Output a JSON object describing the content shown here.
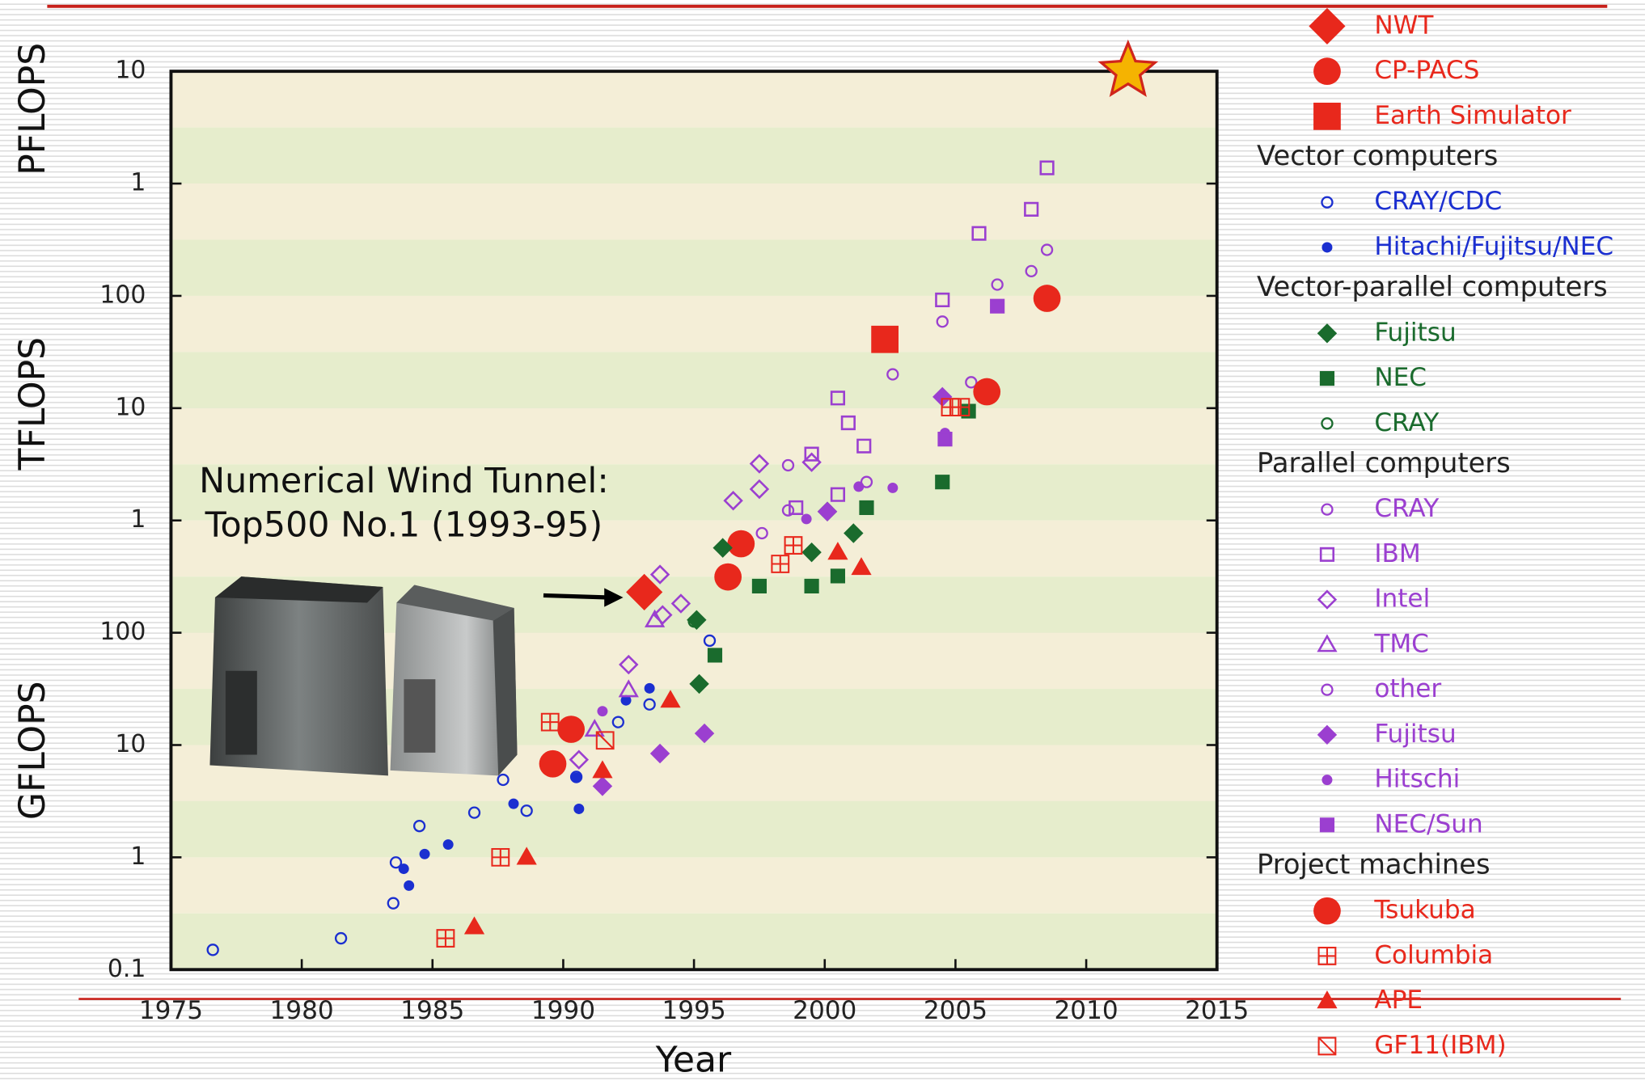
{
  "chart_data": {
    "type": "scatter",
    "unit_labels": [
      "GFLOPS",
      "TFLOPS",
      "PFLOPS"
    ],
    "xlabel": "Year",
    "annotation": [
      "Numerical Wind Tunnel:",
      "Top500 No.1 (1993-95)"
    ],
    "log_y": true,
    "xlim": [
      1975,
      2015
    ],
    "ylim": [
      0.1,
      10000000
    ],
    "xticks": [
      1975,
      1980,
      1985,
      1990,
      1995,
      2000,
      2005,
      2010,
      2015
    ],
    "yticks": [
      0.1,
      1,
      10,
      100,
      {
        "value": 1000,
        "label": "1"
      },
      {
        "value": 10000,
        "label": "10"
      },
      {
        "value": 100000,
        "label": "100"
      },
      {
        "value": 1000000,
        "label": "1"
      },
      {
        "value": 10000000,
        "label": "10"
      }
    ],
    "series": [
      {
        "name": "NWT",
        "color": "#e8281c",
        "marker": "diamond-big",
        "x": [
          1993.1
        ],
        "values": [
          230
        ]
      },
      {
        "name": "CP-PACS",
        "color": "#e8281c",
        "marker": "circle-big",
        "x": [
          1996.8
        ],
        "values": [
          620
        ]
      },
      {
        "name": "Earth Simulator",
        "color": "#e8281c",
        "marker": "square-big",
        "x": [
          2002.3
        ],
        "values": [
          41000
        ]
      },
      {
        "name": "CRAY/CDC",
        "group": "Vector computers",
        "color": "#1b2fd0",
        "marker": "circle-open",
        "x": [
          1976.6,
          1981.5,
          1983.5,
          1983.6,
          1984.5,
          1986.6,
          1987.7,
          1988.6,
          1990.5,
          1992.1,
          1993.3,
          1995.6
        ],
        "values": [
          0.15,
          0.19,
          0.39,
          0.9,
          1.9,
          2.5,
          4.9,
          2.6,
          5.2,
          16,
          23,
          85
        ]
      },
      {
        "name": "Hitachi/Fujitsu/NEC",
        "group": "Vector computers",
        "color": "#1b2fd0",
        "marker": "dot",
        "x": [
          1983.9,
          1984.1,
          1984.7,
          1985.6,
          1988.1,
          1990.6,
          1990.5,
          1992.4,
          1993.3
        ],
        "values": [
          0.79,
          0.56,
          1.07,
          1.3,
          3.0,
          2.7,
          5.1,
          25,
          32
        ]
      },
      {
        "name": "Fujitsu",
        "group": "Vector-parallel computers",
        "color": "#1a6b2d",
        "marker": "diamond",
        "x": [
          1995.1,
          1995.2,
          1996.1,
          1999.5,
          2000.1,
          2001.1
        ],
        "values": [
          130,
          35,
          570,
          520,
          1200,
          770
        ]
      },
      {
        "name": "NEC",
        "group": "Vector-parallel computers",
        "color": "#1a6b2d",
        "marker": "square",
        "x": [
          1995.8,
          1997.5,
          1999.5,
          2000.5,
          2001.6,
          2004.5,
          2005.5
        ],
        "values": [
          63,
          260,
          260,
          320,
          1300,
          2200,
          9400
        ]
      },
      {
        "name": "CRAY",
        "group": "Vector-parallel computers",
        "color": "#1a6b2d",
        "marker": "circle-open",
        "x": [
          1995.0
        ],
        "values": [
          126
        ]
      },
      {
        "name": "CRAY",
        "group": "Parallel computers",
        "color": "#9b3fd0",
        "marker": "circle-open",
        "x": [
          2002.6,
          2004.5,
          2005.6,
          2006.6,
          2007.9,
          2008.5
        ],
        "values": [
          20000,
          59000,
          17000,
          126000,
          166000,
          257000
        ]
      },
      {
        "name": "IBM",
        "group": "Parallel computers",
        "color": "#9b3fd0",
        "marker": "square-open",
        "x": [
          1998.9,
          2000.5,
          2000.5,
          2000.9,
          2001.5,
          1999.5,
          2004.5,
          2005.9,
          2007.9,
          2008.5
        ],
        "values": [
          1300,
          1700,
          12300,
          7400,
          4600,
          3900,
          92000,
          360000,
          590000,
          1380000
        ]
      },
      {
        "name": "Intel",
        "group": "Parallel computers",
        "color": "#9b3fd0",
        "marker": "diamond-open",
        "x": [
          1990.6,
          1992.5,
          1993.7,
          1993.8,
          1994.5,
          1996.5,
          1997.5,
          1997.5,
          1999.5
        ],
        "values": [
          7.4,
          52,
          330,
          144,
          182,
          1500,
          3200,
          1900,
          3300
        ]
      },
      {
        "name": "TMC",
        "group": "Parallel computers",
        "color": "#9b3fd0",
        "marker": "triangle-open",
        "x": [
          1991.2,
          1992.5,
          1993.5
        ],
        "values": [
          13.8,
          31,
          130
        ]
      },
      {
        "name": "other",
        "group": "Parallel computers",
        "color": "#9b3fd0",
        "marker": "circle-open",
        "x": [
          1997.6,
          1998.6,
          1998.6,
          2001.6
        ],
        "values": [
          770,
          3100,
          1230,
          2200
        ]
      },
      {
        "name": "Fujitsu",
        "group": "Parallel computers",
        "color": "#9b3fd0",
        "marker": "diamond",
        "x": [
          1991.5,
          1993.7,
          1995.4,
          2000.1,
          2004.5
        ],
        "values": [
          4.3,
          8.4,
          12.7,
          1200,
          12600
        ]
      },
      {
        "name": "Hitschi",
        "group": "Parallel computers",
        "color": "#9b3fd0",
        "marker": "dot",
        "x": [
          1991.5,
          1999.3,
          2001.3,
          2002.6,
          2004.6
        ],
        "values": [
          20,
          1030,
          2000,
          1950,
          6000
        ]
      },
      {
        "name": "NEC/Sun",
        "group": "Parallel computers",
        "color": "#9b3fd0",
        "marker": "square",
        "x": [
          2004.6,
          2006.6
        ],
        "values": [
          5300,
          81000
        ]
      },
      {
        "name": "Tsukuba",
        "group": "Project machines",
        "color": "#e8281c",
        "marker": "circle-big",
        "x": [
          1989.6,
          1990.3,
          1996.3,
          2006.2,
          2008.5
        ],
        "values": [
          6.8,
          13.8,
          314,
          14000,
          95000
        ]
      },
      {
        "name": "Columbia",
        "group": "Project machines",
        "color": "#e8281c",
        "marker": "square-cross",
        "x": [
          1985.5,
          1987.6,
          1989.5,
          1998.3,
          1998.8,
          2004.8,
          2005.2
        ],
        "values": [
          0.19,
          1.0,
          16,
          410,
          600,
          10200,
          10200
        ]
      },
      {
        "name": "APE",
        "group": "Project machines",
        "color": "#e8281c",
        "marker": "triangle",
        "x": [
          1986.6,
          1988.6,
          1991.5,
          1994.1,
          2000.5,
          2001.4
        ],
        "values": [
          0.24,
          1.0,
          5.9,
          25,
          520,
          380
        ]
      },
      {
        "name": "GF11(IBM)",
        "group": "Project machines",
        "color": "#e8281c",
        "marker": "square-slash",
        "x": [
          1991.6
        ],
        "values": [
          11
        ]
      },
      {
        "color": "#f5b301",
        "marker": "star",
        "x": [
          2011.6
        ],
        "values": [
          10000000
        ]
      }
    ]
  }
}
